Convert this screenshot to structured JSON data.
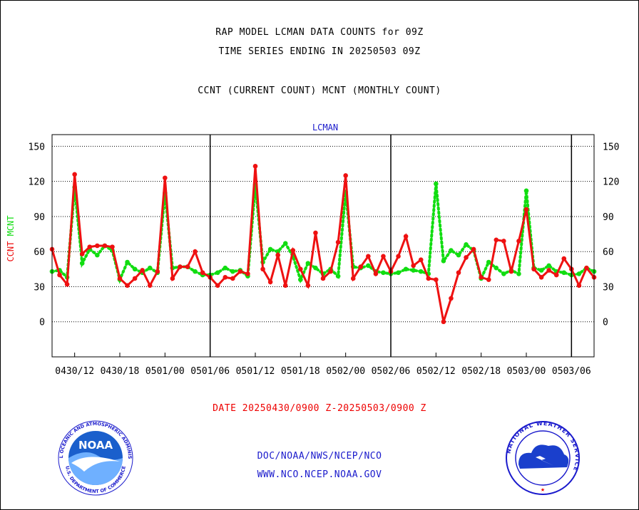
{
  "header": {
    "line1": "RAP MODEL LCMAN DATA COUNTS for 09Z",
    "line2": "TIME SERIES ENDING IN 20250503 09Z",
    "line3": "CCNT (CURRENT COUNT) MCNT (MONTHLY COUNT)"
  },
  "footer": {
    "date_range": "DATE 20250430/0900 Z-20250503/0900 Z",
    "org": "DOC/NOAA/NWS/NCEP/NCO",
    "url": "WWW.NCO.NCEP.NOAA.GOV"
  },
  "logos": {
    "noaa_text": "NOAA",
    "noaa_ring": "NATIONAL OCEANIC AND ATMOSPHERIC ADMINISTRATION",
    "noaa_ring_bottom": "U.S. DEPARTMENT OF COMMERCE",
    "nws_ring": "NATIONAL WEATHER SERVICE"
  },
  "colors": {
    "ccnt": "#ee1111",
    "mcnt": "#11dd11",
    "text_blue": "#1a1acc",
    "text_red": "#ee1111"
  },
  "chart_data": {
    "type": "line",
    "title": "LCMAN",
    "ylabel_series": [
      "CCNT",
      "MCNT"
    ],
    "ylim": [
      -30,
      160
    ],
    "yticks": [
      0,
      30,
      60,
      90,
      120,
      150
    ],
    "xlim": [
      0,
      72
    ],
    "xtick_positions": [
      3,
      9,
      15,
      21,
      27,
      33,
      39,
      45,
      51,
      57,
      63,
      69
    ],
    "xtick_labels": [
      "0430/12",
      "0430/18",
      "0501/00",
      "0501/06",
      "0501/12",
      "0501/18",
      "0502/00",
      "0502/06",
      "0502/12",
      "0502/18",
      "0503/00",
      "0503/06"
    ],
    "day_dividers": [
      21,
      45,
      69
    ],
    "grid": true,
    "series": [
      {
        "name": "CCNT",
        "x": [
          0,
          1,
          2,
          3,
          4,
          5,
          6,
          7,
          8,
          9,
          10,
          11,
          12,
          13,
          14,
          15,
          16,
          17,
          18,
          19,
          20,
          21,
          22,
          23,
          24,
          25,
          26,
          27,
          28,
          29,
          30,
          31,
          32,
          33,
          34,
          35,
          36,
          37,
          38,
          39,
          40,
          41,
          42,
          43,
          44,
          45,
          46,
          47,
          48,
          49,
          50,
          51,
          52,
          53,
          54,
          55,
          56,
          57,
          58,
          59,
          60,
          61,
          62,
          63,
          64,
          65,
          66,
          67,
          68,
          69,
          70,
          71,
          72
        ],
        "values": [
          62,
          40,
          32,
          126,
          58,
          64,
          65,
          65,
          64,
          37,
          31,
          37,
          44,
          31,
          43,
          123,
          37,
          47,
          47,
          60,
          42,
          38,
          31,
          38,
          37,
          43,
          41,
          133,
          45,
          34,
          57,
          31,
          61,
          45,
          31,
          76,
          37,
          43,
          68,
          125,
          37,
          47,
          56,
          41,
          56,
          43,
          56,
          73,
          48,
          53,
          37,
          36,
          0,
          20,
          42,
          55,
          62,
          38,
          36,
          70,
          69,
          43,
          69,
          96,
          45,
          38,
          44,
          40,
          54,
          45,
          31,
          46,
          38
        ]
      },
      {
        "name": "MCNT",
        "x": [
          0,
          1,
          2,
          3,
          4,
          5,
          6,
          7,
          8,
          9,
          10,
          11,
          12,
          13,
          14,
          15,
          16,
          17,
          18,
          19,
          20,
          21,
          22,
          23,
          24,
          25,
          26,
          27,
          28,
          29,
          30,
          31,
          32,
          33,
          34,
          35,
          36,
          37,
          38,
          39,
          40,
          41,
          42,
          43,
          44,
          45,
          46,
          47,
          48,
          49,
          50,
          51,
          52,
          53,
          54,
          55,
          56,
          57,
          58,
          59,
          60,
          61,
          62,
          63,
          64,
          65,
          66,
          67,
          68,
          69,
          70,
          71,
          72
        ],
        "values": [
          43,
          44,
          38,
          115,
          50,
          62,
          57,
          65,
          61,
          36,
          51,
          45,
          42,
          46,
          42,
          110,
          46,
          47,
          47,
          43,
          40,
          40,
          42,
          46,
          43,
          44,
          39,
          117,
          51,
          62,
          60,
          67,
          56,
          36,
          50,
          46,
          41,
          45,
          39,
          111,
          47,
          46,
          48,
          43,
          42,
          41,
          42,
          45,
          44,
          43,
          41,
          118,
          52,
          61,
          57,
          66,
          61,
          37,
          51,
          46,
          41,
          44,
          41,
          112,
          46,
          44,
          48,
          43,
          42,
          40,
          41,
          46,
          43
        ]
      }
    ]
  }
}
